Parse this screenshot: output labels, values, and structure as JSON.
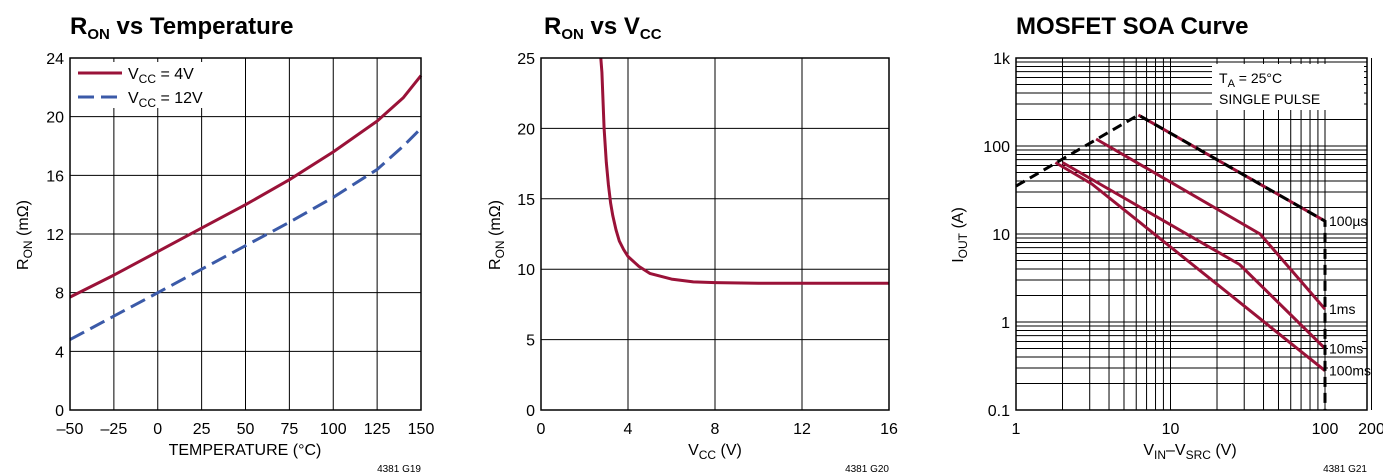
{
  "colors": {
    "crimson": "#9a1238",
    "blue": "#3b5aa8",
    "grid": "#000000"
  },
  "chart_data": [
    {
      "id": "g19",
      "type": "line",
      "title": {
        "main": "R",
        "sub": "ON",
        "rest": " vs Temperature"
      },
      "xlabel": "TEMPERATURE (°C)",
      "ylabel": {
        "main": "R",
        "sub": "ON",
        "rest": " (mΩ)"
      },
      "xlim": [
        -50,
        150
      ],
      "ylim": [
        0,
        24
      ],
      "xticks": [
        -50,
        -25,
        0,
        25,
        50,
        75,
        100,
        125,
        150
      ],
      "xtick_labels": [
        "–50",
        "–25",
        "0",
        "25",
        "50",
        "75",
        "100",
        "125",
        "150"
      ],
      "yticks": [
        0,
        4,
        8,
        12,
        16,
        20,
        24
      ],
      "ytick_labels": [
        "0",
        "4",
        "8",
        "12",
        "16",
        "20",
        "24"
      ],
      "grid": true,
      "legend_position": "top-left",
      "figure_code": "4381 G19",
      "series": [
        {
          "name": {
            "main": "V",
            "sub": "CC",
            "rest": " = 4V"
          },
          "color": "crimson",
          "dash": "solid",
          "x": [
            -50,
            -25,
            0,
            25,
            50,
            75,
            100,
            125,
            140,
            150
          ],
          "y": [
            7.7,
            9.2,
            10.8,
            12.4,
            14.0,
            15.7,
            17.6,
            19.7,
            21.3,
            22.8
          ]
        },
        {
          "name": {
            "main": "V",
            "sub": "CC",
            "rest": " = 12V"
          },
          "color": "blue",
          "dash": "dashed",
          "x": [
            -50,
            -25,
            0,
            25,
            50,
            75,
            100,
            125,
            140,
            150
          ],
          "y": [
            4.8,
            6.4,
            8.0,
            9.6,
            11.2,
            12.8,
            14.5,
            16.4,
            18.0,
            19.2
          ]
        }
      ]
    },
    {
      "id": "g20",
      "type": "line",
      "title": {
        "main": "R",
        "sub": "ON",
        "rest": " vs V",
        "sub2": "CC"
      },
      "xlabel": {
        "main": "V",
        "sub": "CC",
        "rest": " (V)"
      },
      "ylabel": {
        "main": "R",
        "sub": "ON",
        "rest": " (mΩ)"
      },
      "xlim": [
        0,
        16
      ],
      "ylim": [
        0,
        25
      ],
      "xticks": [
        0,
        4,
        8,
        12,
        16
      ],
      "xtick_labels": [
        "0",
        "4",
        "8",
        "12",
        "16"
      ],
      "yticks": [
        0,
        5,
        10,
        15,
        20,
        25
      ],
      "ytick_labels": [
        "0",
        "5",
        "10",
        "15",
        "20",
        "25"
      ],
      "grid": true,
      "figure_code": "4381 G20",
      "series": [
        {
          "color": "crimson",
          "dash": "solid",
          "x": [
            2.75,
            2.8,
            2.9,
            3.0,
            3.1,
            3.2,
            3.3,
            3.45,
            3.6,
            3.8,
            4.0,
            4.5,
            5.0,
            6.0,
            7.0,
            8.0,
            10.0,
            12.0,
            14.0,
            16.0
          ],
          "y": [
            25,
            24.0,
            20.0,
            17.6,
            16.0,
            14.7,
            13.8,
            12.8,
            12.0,
            11.4,
            10.9,
            10.2,
            9.7,
            9.3,
            9.1,
            9.05,
            9.0,
            9.0,
            9.0,
            9.0
          ]
        }
      ]
    },
    {
      "id": "g21",
      "type": "line",
      "title": "MOSFET SOA Curve",
      "xlabel": {
        "main": "V",
        "sub": "IN",
        "rest": "–V",
        "sub2": "SRC",
        "rest2": " (V)"
      },
      "ylabel": {
        "main": "I",
        "sub": "OUT",
        "rest": " (A)"
      },
      "xscale": "log",
      "yscale": "log",
      "xlim": [
        1,
        200
      ],
      "ylim": [
        0.1,
        1000
      ],
      "xticks": [
        1,
        10,
        100,
        200
      ],
      "xtick_labels": [
        "1",
        "10",
        "100",
        "200"
      ],
      "yticks": [
        0.1,
        1,
        10,
        100,
        1000
      ],
      "ytick_labels": [
        "0.1",
        "1",
        "10",
        "100",
        "1k"
      ],
      "grid": true,
      "figure_code": "4381 G21",
      "annotation_box": {
        "line1": {
          "main": "T",
          "sub": "A",
          "rest": " = 25°C"
        },
        "line2": "SINGLE PULSE"
      },
      "limit_line": {
        "color": "black",
        "dash": "dashed",
        "x": [
          1,
          6.2,
          100,
          100
        ],
        "y": [
          35,
          225,
          14,
          0.1
        ]
      },
      "series": [
        {
          "name": "100µs",
          "color": "crimson",
          "x": [
            6.2,
            100
          ],
          "y": [
            225,
            14
          ]
        },
        {
          "name": "1ms",
          "color": "crimson",
          "x": [
            3.3,
            38,
            100
          ],
          "y": [
            120,
            10,
            1.4
          ]
        },
        {
          "name": "10ms",
          "color": "crimson",
          "x": [
            2.0,
            28,
            100
          ],
          "y": [
            65,
            4.5,
            0.5
          ]
        },
        {
          "name": "100ms",
          "color": "crimson",
          "x": [
            1.8,
            3.1,
            100
          ],
          "y": [
            65,
            37,
            0.28
          ]
        }
      ]
    }
  ]
}
